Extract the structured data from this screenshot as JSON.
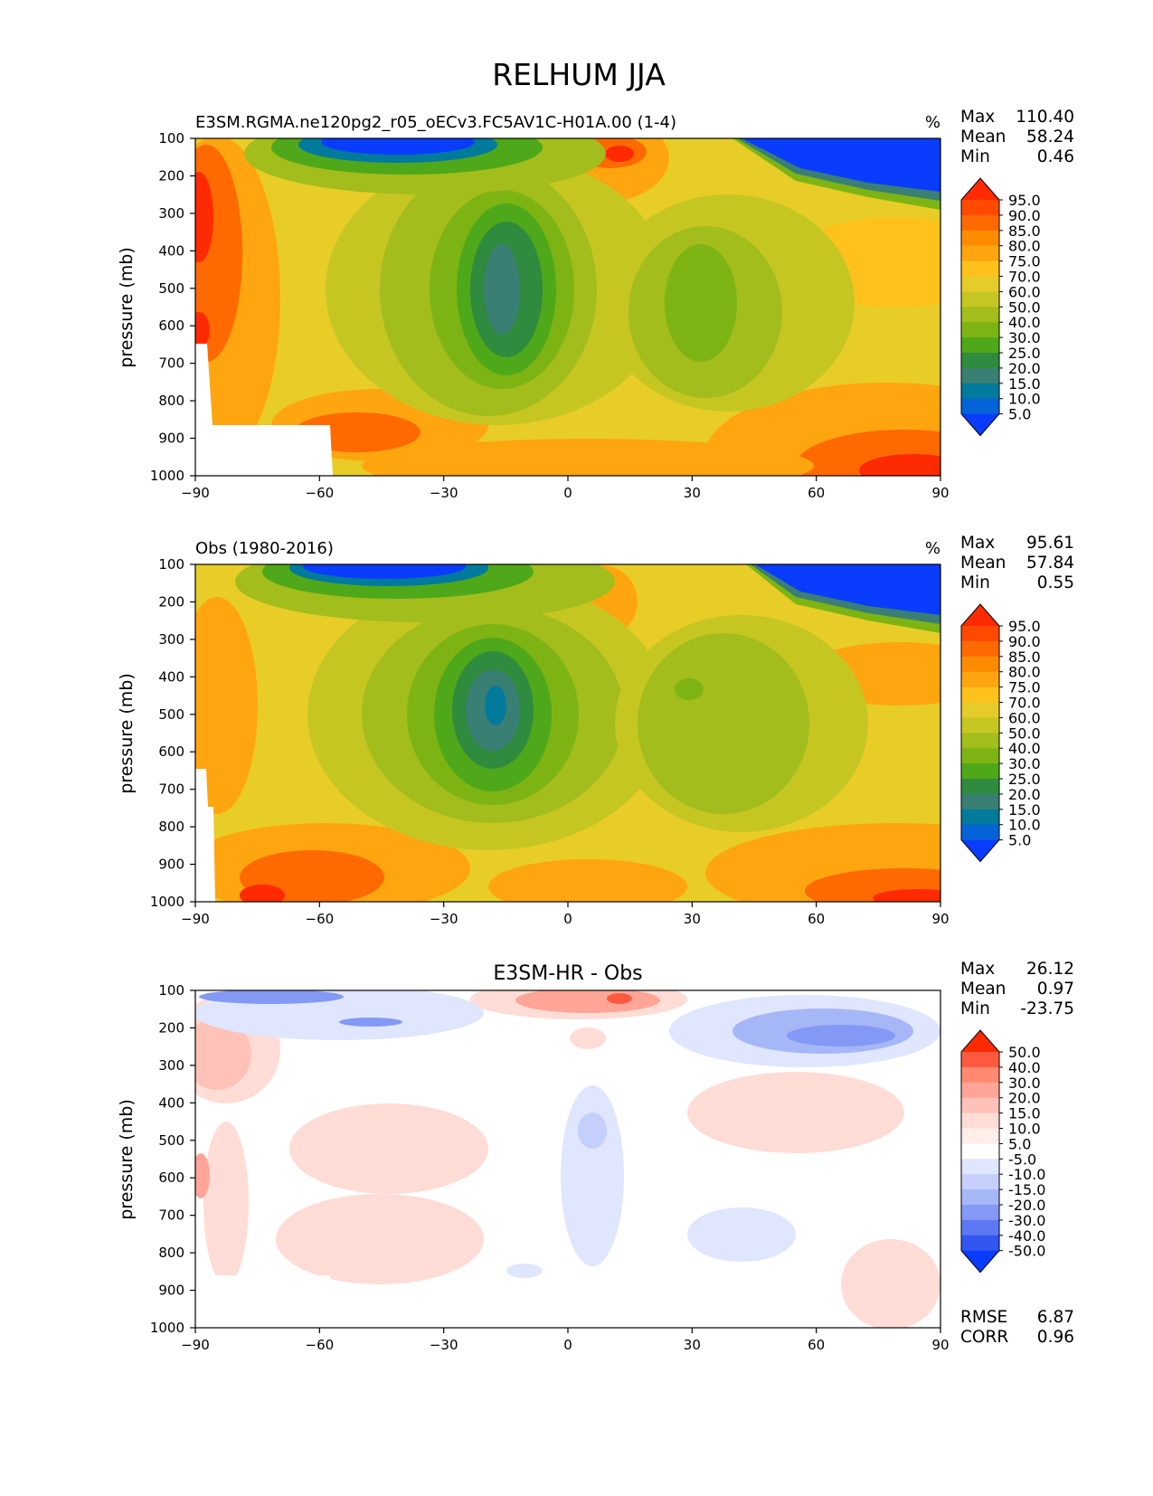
{
  "figure": {
    "title": "RELHUM JJA"
  },
  "panels": [
    {
      "id": "test",
      "left_title": "E3SM.RGMA.ne120pg2_r05_oECv3.FC5AV1C-H01A.00 (1-4)",
      "center_title": "",
      "units": "%",
      "ylabel": "pressure (mb)",
      "stats": [
        {
          "label": "Max",
          "value": "110.40"
        },
        {
          "label": "Mean",
          "value": "58.24"
        },
        {
          "label": "Min",
          "value": "0.46"
        }
      ],
      "extra_stats": [],
      "colorbar": {
        "tick_labels": [
          "95.0",
          "90.0",
          "85.0",
          "80.0",
          "75.0",
          "70.0",
          "60.0",
          "50.0",
          "40.0",
          "30.0",
          "25.0",
          "20.0",
          "15.0",
          "10.0",
          "5.0"
        ],
        "colors": [
          "#ff2a00",
          "#ff4a00",
          "#ff6a00",
          "#ff8c00",
          "#ffa510",
          "#ffc21c",
          "#e6cc2a",
          "#c6c622",
          "#a2bd1c",
          "#7db414",
          "#4ea81a",
          "#2f8b3e",
          "#3a7f73",
          "#027a9c",
          "#0463d6",
          "#0a3cff"
        ]
      }
    },
    {
      "id": "reference",
      "left_title": "Obs (1980-2016)",
      "center_title": "",
      "units": "%",
      "ylabel": "pressure (mb)",
      "stats": [
        {
          "label": "Max",
          "value": "95.61"
        },
        {
          "label": "Mean",
          "value": "57.84"
        },
        {
          "label": "Min",
          "value": "0.55"
        }
      ],
      "extra_stats": [],
      "colorbar": {
        "tick_labels": [
          "95.0",
          "90.0",
          "85.0",
          "80.0",
          "75.0",
          "70.0",
          "60.0",
          "50.0",
          "40.0",
          "30.0",
          "25.0",
          "20.0",
          "15.0",
          "10.0",
          "5.0"
        ],
        "colors": [
          "#ff2a00",
          "#ff4a00",
          "#ff6a00",
          "#ff8c00",
          "#ffa510",
          "#ffc21c",
          "#e6cc2a",
          "#c6c622",
          "#a2bd1c",
          "#7db414",
          "#4ea81a",
          "#2f8b3e",
          "#3a7f73",
          "#027a9c",
          "#0463d6",
          "#0a3cff"
        ]
      }
    },
    {
      "id": "difference",
      "left_title": "",
      "center_title": "E3SM-HR - Obs",
      "units": "",
      "ylabel": "pressure (mb)",
      "stats": [
        {
          "label": "Max",
          "value": "26.12"
        },
        {
          "label": "Mean",
          "value": "0.97"
        },
        {
          "label": "Min",
          "value": "-23.75"
        }
      ],
      "extra_stats": [
        {
          "label": "RMSE",
          "value": "6.87"
        },
        {
          "label": "CORR",
          "value": "0.96"
        }
      ],
      "colorbar": {
        "tick_labels": [
          "50.0",
          "40.0",
          "30.0",
          "20.0",
          "15.0",
          "10.0",
          "5.0",
          "-5.0",
          "-10.0",
          "-15.0",
          "-20.0",
          "-30.0",
          "-40.0",
          "-50.0"
        ],
        "colors": [
          "#ff2a00",
          "#ff5a40",
          "#ff8a70",
          "#ffa598",
          "#ffc2b8",
          "#ffdcd5",
          "#ffeeea",
          "#ffffff",
          "#dfe6fd",
          "#c4d0fb",
          "#a6b7f8",
          "#8499f5",
          "#5c78f3",
          "#3356f1",
          "#0a3cff"
        ]
      }
    }
  ],
  "chart_data": [
    {
      "type": "heatmap",
      "panel": "test",
      "x": [
        -90,
        -60,
        -30,
        0,
        30,
        60,
        90
      ],
      "xticklabels": [
        "−90",
        "−60",
        "−30",
        "0",
        "30",
        "60",
        "90"
      ],
      "yticks": [
        100,
        200,
        300,
        400,
        500,
        600,
        700,
        800,
        900,
        1000
      ],
      "xlim": [
        -90,
        90
      ],
      "ylim": [
        1000,
        100
      ],
      "ylabel": "pressure (mb)",
      "levels": [
        5,
        10,
        15,
        20,
        25,
        30,
        40,
        50,
        60,
        70,
        75,
        80,
        85,
        90,
        95
      ]
    },
    {
      "type": "heatmap",
      "panel": "reference",
      "x": [
        -90,
        -60,
        -30,
        0,
        30,
        60,
        90
      ],
      "xticklabels": [
        "−90",
        "−60",
        "−30",
        "0",
        "30",
        "60",
        "90"
      ],
      "yticks": [
        100,
        200,
        300,
        400,
        500,
        600,
        700,
        800,
        900,
        1000
      ],
      "xlim": [
        -90,
        90
      ],
      "ylim": [
        1000,
        100
      ],
      "ylabel": "pressure (mb)",
      "levels": [
        5,
        10,
        15,
        20,
        25,
        30,
        40,
        50,
        60,
        70,
        75,
        80,
        85,
        90,
        95
      ]
    },
    {
      "type": "heatmap",
      "panel": "difference",
      "x": [
        -90,
        -60,
        -30,
        0,
        30,
        60,
        90
      ],
      "xticklabels": [
        "−90",
        "−60",
        "−30",
        "0",
        "30",
        "60",
        "90"
      ],
      "yticks": [
        100,
        200,
        300,
        400,
        500,
        600,
        700,
        800,
        900,
        1000
      ],
      "xlim": [
        -90,
        90
      ],
      "ylim": [
        1000,
        100
      ],
      "ylabel": "pressure (mb)",
      "levels": [
        -50,
        -40,
        -30,
        -20,
        -15,
        -10,
        -5,
        5,
        10,
        15,
        20,
        30,
        40,
        50
      ]
    }
  ]
}
